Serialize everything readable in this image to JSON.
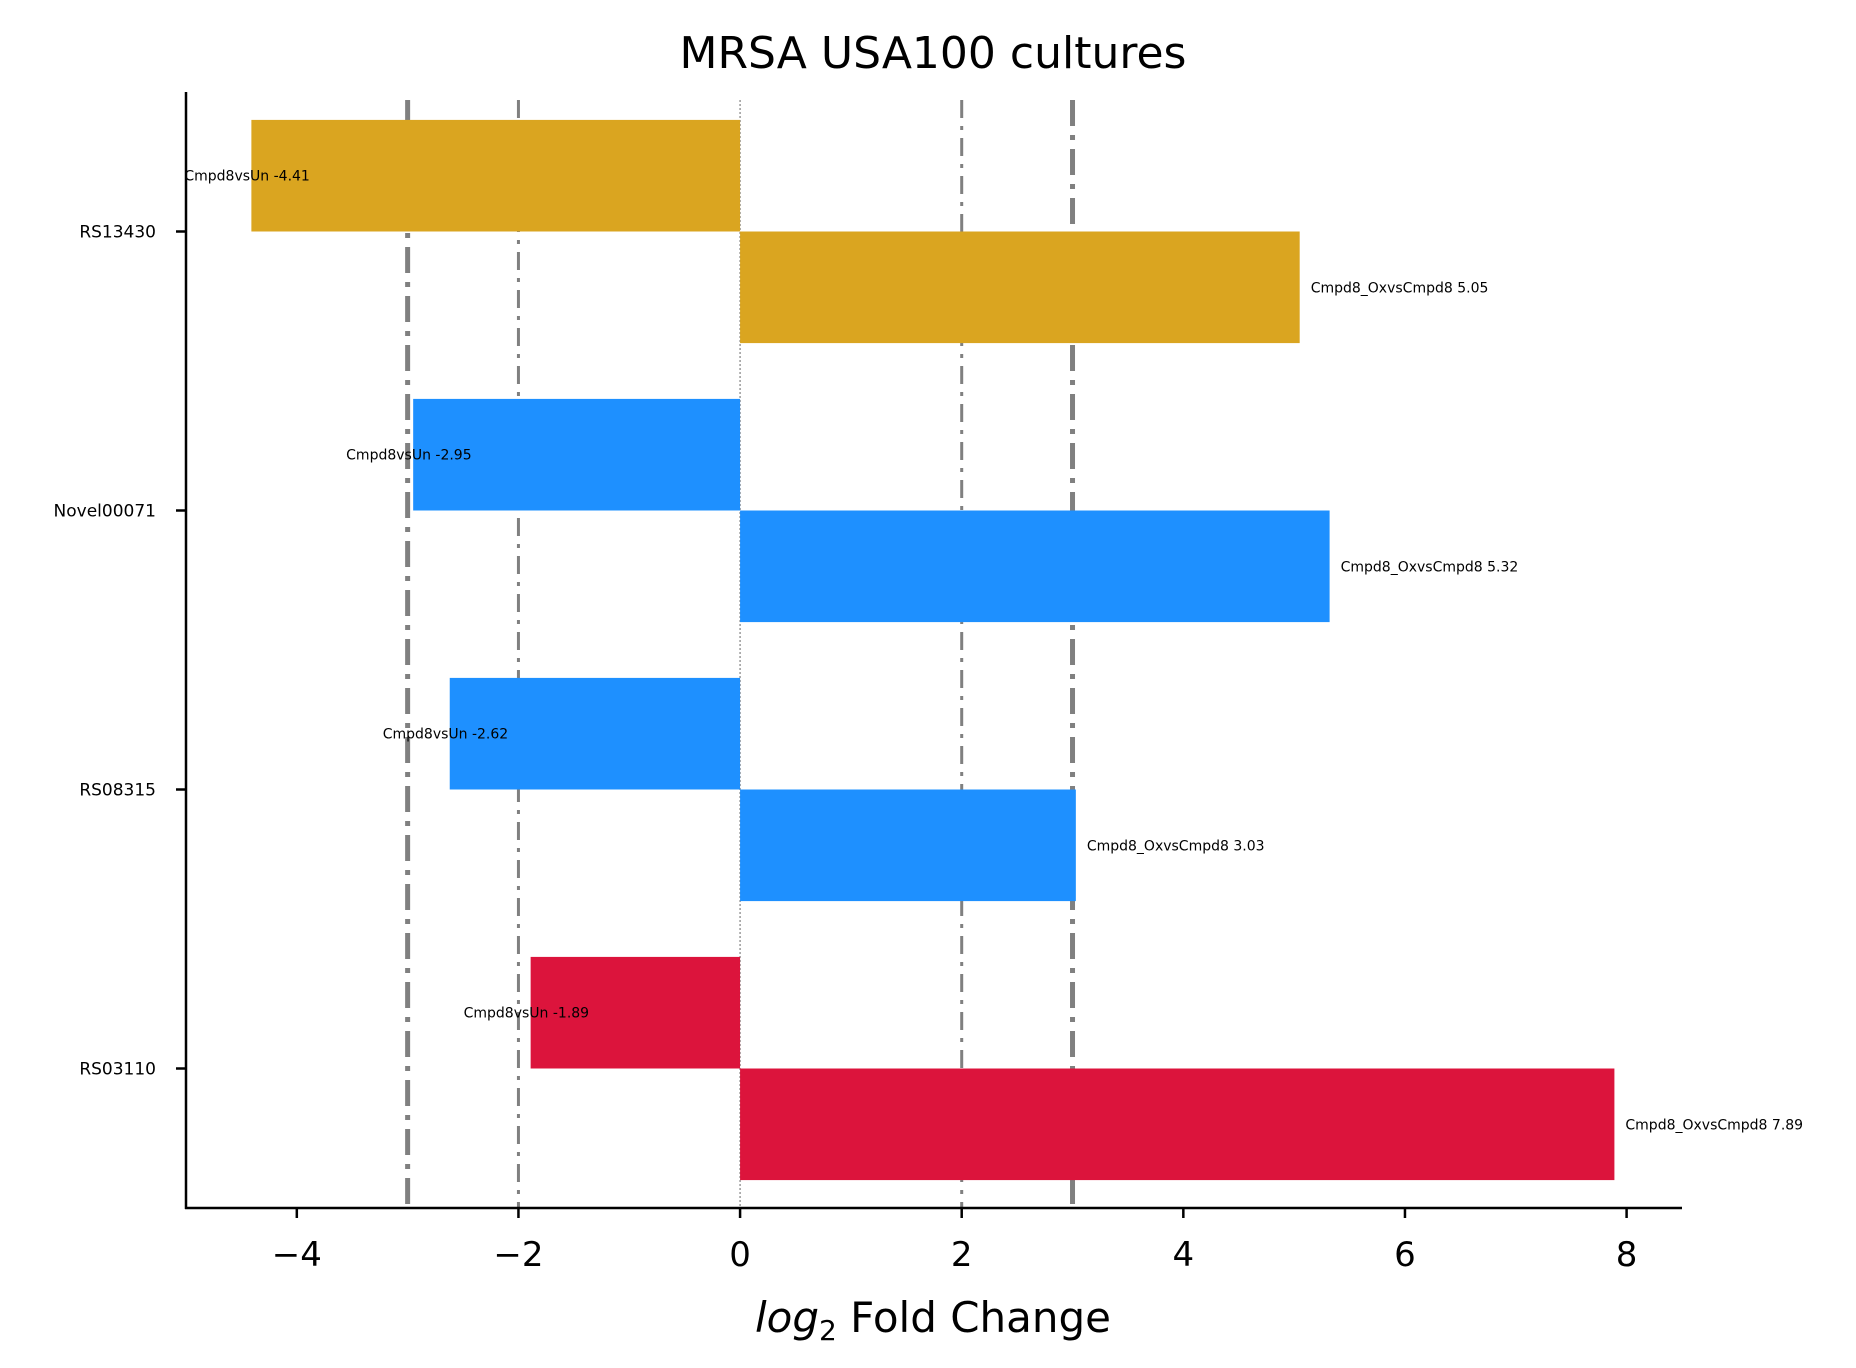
{
  "chart_data": {
    "type": "bar",
    "orientation": "horizontal",
    "title": "MRSA USA100 cultures",
    "xlabel_italic": "log",
    "xlabel_sub": "2",
    "xlabel_rest": " Fold Change",
    "xlim": [
      -5.0,
      8.5
    ],
    "xticks": [
      -4,
      -2,
      0,
      2,
      4,
      6,
      8
    ],
    "xtick_labels": [
      "−4",
      "−2",
      "0",
      "2",
      "4",
      "6",
      "8"
    ],
    "reference_lines": [
      {
        "x": -3,
        "style": "thick-dashdot"
      },
      {
        "x": -2,
        "style": "thin-dashdot"
      },
      {
        "x": 0,
        "style": "dotted"
      },
      {
        "x": 2,
        "style": "thin-dashdot"
      },
      {
        "x": 3,
        "style": "thick-dashdot"
      }
    ],
    "categories": [
      "RS13430",
      "Novel00071",
      "RS08315",
      "RS03110"
    ],
    "bars": [
      {
        "category": "RS13430",
        "comparison": "Cmpd8vsUn",
        "value": -4.41,
        "label": "Cmpd8vsUn -4.41",
        "color": "#DAA520"
      },
      {
        "category": "RS13430",
        "comparison": "Cmpd8_OxvsCmpd8",
        "value": 5.05,
        "label": "Cmpd8_OxvsCmpd8 5.05",
        "color": "#DAA520"
      },
      {
        "category": "Novel00071",
        "comparison": "Cmpd8vsUn",
        "value": -2.95,
        "label": "Cmpd8vsUn -2.95",
        "color": "#1E90FF"
      },
      {
        "category": "Novel00071",
        "comparison": "Cmpd8_OxvsCmpd8",
        "value": 5.32,
        "label": "Cmpd8_OxvsCmpd8 5.32",
        "color": "#1E90FF"
      },
      {
        "category": "RS08315",
        "comparison": "Cmpd8vsUn",
        "value": -2.62,
        "label": "Cmpd8vsUn -2.62",
        "color": "#1E90FF"
      },
      {
        "category": "RS08315",
        "comparison": "Cmpd8_OxvsCmpd8",
        "value": 3.03,
        "label": "Cmpd8_OxvsCmpd8 3.03",
        "color": "#1E90FF"
      },
      {
        "category": "RS03110",
        "comparison": "Cmpd8vsUn",
        "value": -1.89,
        "label": "Cmpd8vsUn -1.89",
        "color": "#DC143C"
      },
      {
        "category": "RS03110",
        "comparison": "Cmpd8_OxvsCmpd8",
        "value": 7.89,
        "label": "Cmpd8_OxvsCmpd8 7.89",
        "color": "#DC143C"
      }
    ],
    "grid": false,
    "legend": "none",
    "colors": {
      "gold": "#DAA520",
      "blue": "#1E90FF",
      "red": "#DC143C",
      "reference": "#808080"
    }
  }
}
